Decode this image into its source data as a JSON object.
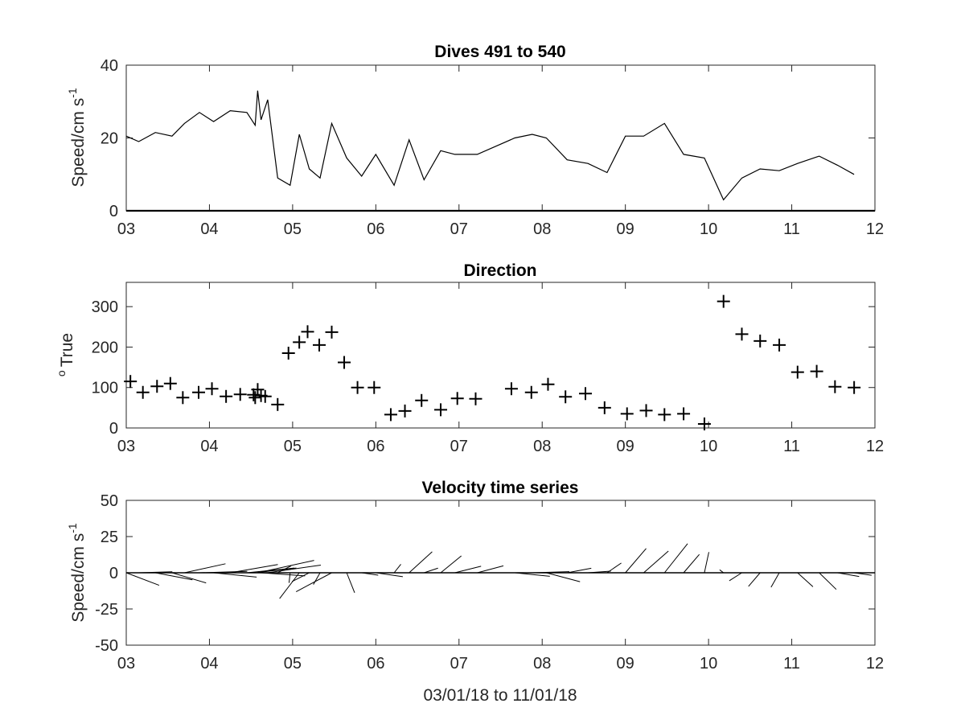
{
  "chart_data": [
    {
      "type": "line",
      "title": "Dives 491 to 540",
      "ylabel": "Speed/cm s",
      "ylabel_superscript": "-1",
      "xlabel": "",
      "xlim": [
        3,
        12
      ],
      "ylim": [
        0,
        40
      ],
      "xticks": [
        3,
        4,
        5,
        6,
        7,
        8,
        9,
        10,
        11,
        12
      ],
      "xtick_labels": [
        "03",
        "04",
        "05",
        "06",
        "07",
        "08",
        "09",
        "10",
        "11",
        "12"
      ],
      "yticks": [
        0,
        20,
        40
      ],
      "ytick_labels": [
        "0",
        "20",
        "40"
      ],
      "grid": false,
      "series": [
        {
          "x": [
            3.0,
            3.15,
            3.35,
            3.55,
            3.7,
            3.88,
            4.05,
            4.25,
            4.45,
            4.55,
            4.58,
            4.62,
            4.7,
            4.82,
            4.97,
            5.08,
            5.2,
            5.33,
            5.47,
            5.65,
            5.83,
            6.0,
            6.22,
            6.4,
            6.58,
            6.78,
            6.95,
            7.22,
            7.67,
            7.88,
            8.05,
            8.3,
            8.55,
            8.78,
            9.0,
            9.22,
            9.47,
            9.7,
            9.95,
            10.18,
            10.4,
            10.62,
            10.85,
            11.07,
            11.33,
            11.55,
            11.75
          ],
          "y": [
            20.5,
            19,
            21.5,
            20.5,
            24,
            27,
            24.5,
            27.5,
            27,
            23.5,
            33,
            25,
            30.5,
            9,
            7,
            21,
            11.5,
            9,
            24,
            14.5,
            9.5,
            15.5,
            7,
            19.5,
            8.5,
            16.5,
            15.5,
            15.5,
            20,
            21,
            20,
            14,
            13,
            10.5,
            20.5,
            20.5,
            24,
            15.5,
            14.5,
            3,
            9,
            11.5,
            11,
            13,
            15,
            12.5,
            10
          ]
        }
      ]
    },
    {
      "type": "scatter",
      "title": "Direction",
      "ylabel": "True",
      "ylabel_prefix": "o",
      "xlabel": "",
      "xlim": [
        3,
        12
      ],
      "ylim": [
        0,
        360
      ],
      "xticks": [
        3,
        4,
        5,
        6,
        7,
        8,
        9,
        10,
        11,
        12
      ],
      "xtick_labels": [
        "03",
        "04",
        "05",
        "06",
        "07",
        "08",
        "09",
        "10",
        "11",
        "12"
      ],
      "yticks": [
        0,
        100,
        200,
        300
      ],
      "ytick_labels": [
        "0",
        "100",
        "200",
        "300"
      ],
      "grid": false,
      "marker": "+",
      "series": [
        {
          "x": [
            3.05,
            3.2,
            3.37,
            3.53,
            3.68,
            3.87,
            4.03,
            4.2,
            4.37,
            4.53,
            4.55,
            4.58,
            4.62,
            4.67,
            4.82,
            4.95,
            5.08,
            5.18,
            5.32,
            5.47,
            5.62,
            5.78,
            5.98,
            6.18,
            6.35,
            6.55,
            6.78,
            6.98,
            7.2,
            7.63,
            7.87,
            8.07,
            8.28,
            8.52,
            8.75,
            9.02,
            9.25,
            9.47,
            9.7,
            9.95,
            10.18,
            10.4,
            10.62,
            10.85,
            11.07,
            11.3,
            11.52,
            11.75
          ],
          "y": [
            115,
            88,
            103,
            110,
            75,
            88,
            97,
            78,
            83,
            82,
            75,
            95,
            80,
            78,
            58,
            185,
            212,
            238,
            205,
            237,
            162,
            100,
            100,
            33,
            42,
            68,
            45,
            73,
            72,
            97,
            88,
            108,
            77,
            85,
            50,
            35,
            43,
            33,
            35,
            10,
            313,
            232,
            215,
            205,
            138,
            140,
            102,
            100
          ]
        }
      ]
    },
    {
      "type": "quiver",
      "title": "Velocity time series",
      "ylabel": "Speed/cm s",
      "ylabel_superscript": "-1",
      "xlabel": "03/01/18 to 11/01/18",
      "xlim": [
        3,
        12
      ],
      "ylim": [
        -50,
        50
      ],
      "xticks": [
        3,
        4,
        5,
        6,
        7,
        8,
        9,
        10,
        11,
        12
      ],
      "xtick_labels": [
        "03",
        "04",
        "05",
        "06",
        "07",
        "08",
        "09",
        "10",
        "11",
        "12"
      ],
      "yticks": [
        -50,
        -25,
        0,
        25,
        50
      ],
      "ytick_labels": [
        "-50",
        "-25",
        "0",
        "25",
        "50"
      ],
      "grid": false,
      "series": [
        {
          "x": [
            3.0,
            3.15,
            3.35,
            3.55,
            3.7,
            3.88,
            4.05,
            4.25,
            4.45,
            4.55,
            4.58,
            4.62,
            4.7,
            4.82,
            4.97,
            5.08,
            5.2,
            5.33,
            5.47,
            5.65,
            5.83,
            6.0,
            6.22,
            6.4,
            6.58,
            6.78,
            6.95,
            7.22,
            7.67,
            7.88,
            8.05,
            8.3,
            8.55,
            8.78,
            9.0,
            9.22,
            9.47,
            9.7,
            9.95,
            10.18,
            10.4,
            10.62,
            10.85,
            11.07,
            11.33,
            11.55,
            11.75
          ],
          "speed": [
            20.5,
            19,
            21.5,
            20.5,
            24,
            27,
            24.5,
            27.5,
            27,
            23.5,
            33,
            25,
            30.5,
            9,
            7,
            21,
            11.5,
            9,
            24,
            14.5,
            9.5,
            15.5,
            7,
            19.5,
            8.5,
            16.5,
            15.5,
            15.5,
            20,
            21,
            20,
            14,
            13,
            10.5,
            20.5,
            20.5,
            24,
            15.5,
            14.5,
            3,
            9,
            11.5,
            11,
            13,
            15,
            12.5,
            10
          ],
          "direction": [
            115,
            88,
            103,
            110,
            75,
            88,
            97,
            78,
            83,
            82,
            75,
            95,
            80,
            58,
            185,
            212,
            238,
            205,
            237,
            162,
            100,
            100,
            33,
            42,
            68,
            45,
            73,
            72,
            97,
            88,
            108,
            77,
            85,
            50,
            35,
            43,
            33,
            35,
            10,
            313,
            232,
            215,
            205,
            138,
            140,
            102,
            100
          ]
        }
      ]
    }
  ]
}
